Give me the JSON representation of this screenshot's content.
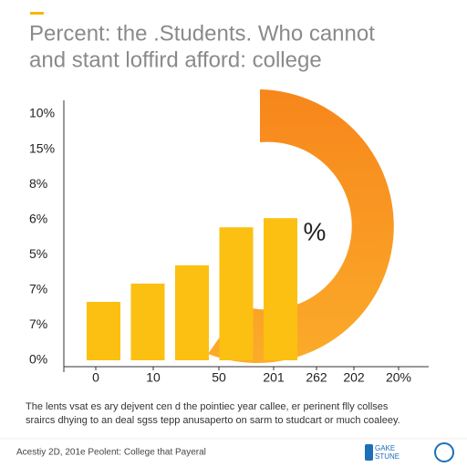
{
  "chart_data": {
    "type": "bar",
    "title": [
      "Percent: the .Students. Who cannot",
      "and stant loffird afford: college"
    ],
    "y_axis_labels": [
      "10%",
      "15%",
      "8%",
      "6%",
      "5%",
      "7%",
      "7%",
      "0%"
    ],
    "x_axis_labels": [
      "0",
      "10",
      "50",
      "201",
      "262",
      "202",
      "20%"
    ],
    "values": [
      1.66,
      2.18,
      2.7,
      3.78,
      4.04
    ],
    "ylim": [
      0,
      7
    ],
    "color": "#fbc012",
    "ring_label": "%",
    "caption": [
      "The lents  vsat es ary dejvent cen d the pointiec year callee, er perinent flly collses",
      "sraircs dhying to an deal sgss tepp anusaperto on sarm to studcart or much coaleey."
    ],
    "footer": "Acestiy 2D, 201e Peolent: College that Payeral",
    "logo": [
      "GAKE",
      "STUNE"
    ]
  }
}
